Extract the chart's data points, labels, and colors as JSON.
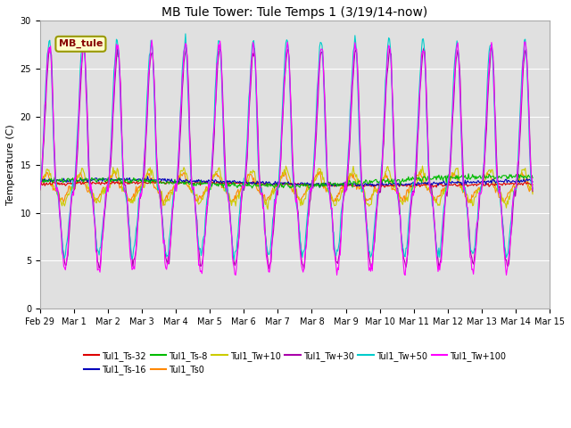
{
  "title": "MB Tule Tower: Tule Temps 1 (3/19/14-now)",
  "ylabel": "Temperature (C)",
  "xlim": [
    0,
    14.5
  ],
  "ylim": [
    0,
    30
  ],
  "yticks": [
    0,
    5,
    10,
    15,
    20,
    25,
    30
  ],
  "xtick_positions": [
    0,
    1,
    2,
    3,
    4,
    5,
    6,
    7,
    8,
    9,
    10,
    11,
    12,
    13,
    14,
    15
  ],
  "xtick_labels": [
    "Feb 29",
    "Mar 1",
    "Mar 2",
    "Mar 3",
    "Mar 4",
    "Mar 5",
    "Mar 6",
    "Mar 7",
    "Mar 8",
    "Mar 9",
    "Mar 10",
    "Mar 11",
    "Mar 12",
    "Mar 13",
    "Mar 14",
    "Mar 15"
  ],
  "bg_color": "#e0e0e0",
  "fig_bg": "#ffffff",
  "legend_box_facecolor": "#ffffcc",
  "legend_box_edgecolor": "#999900",
  "legend_box_textcolor": "#880000",
  "series_colors": {
    "Tul1_Ts-32": "#dd0000",
    "Tul1_Ts-16": "#0000bb",
    "Tul1_Ts-8": "#00bb00",
    "Tul1_Ts0": "#ff8800",
    "Tul1_Tw+10": "#cccc00",
    "Tul1_Tw+30": "#aa00aa",
    "Tul1_Tw+50": "#00cccc",
    "Tul1_Tw+100": "#ff00ff"
  },
  "num_points": 600,
  "title_fontsize": 10,
  "axis_fontsize": 8,
  "tick_fontsize": 7,
  "legend_fontsize": 7
}
